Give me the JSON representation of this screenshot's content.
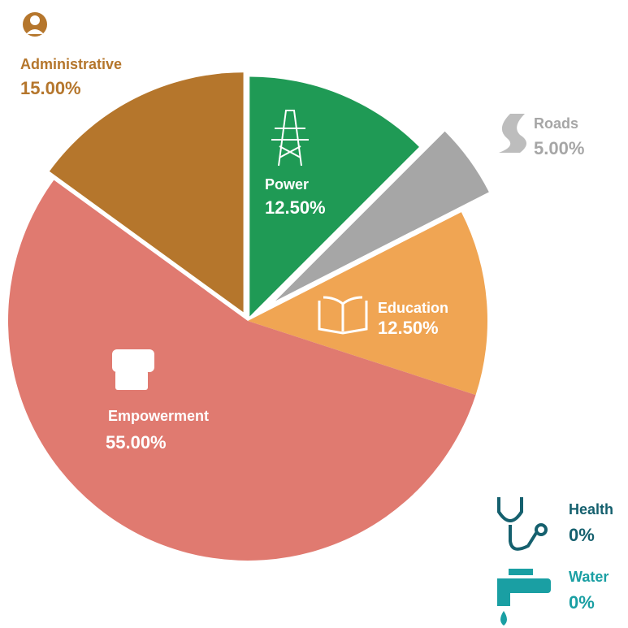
{
  "chart_data": {
    "type": "pie",
    "categories": [
      "Power",
      "Roads",
      "Education",
      "Empowerment",
      "Administrative",
      "Health",
      "Water"
    ],
    "values": [
      12.5,
      5,
      12.5,
      55,
      15,
      0,
      0
    ],
    "value_labels": [
      "12.50%",
      "5.00%",
      "12.50%",
      "55.00%",
      "15.00%",
      "0%",
      "0%"
    ],
    "colors": [
      "#1f9a55",
      "#a6a6a6",
      "#f0a553",
      "#e07a70",
      "#b5762c",
      "#15606e",
      "#1a9fa3"
    ]
  }
}
